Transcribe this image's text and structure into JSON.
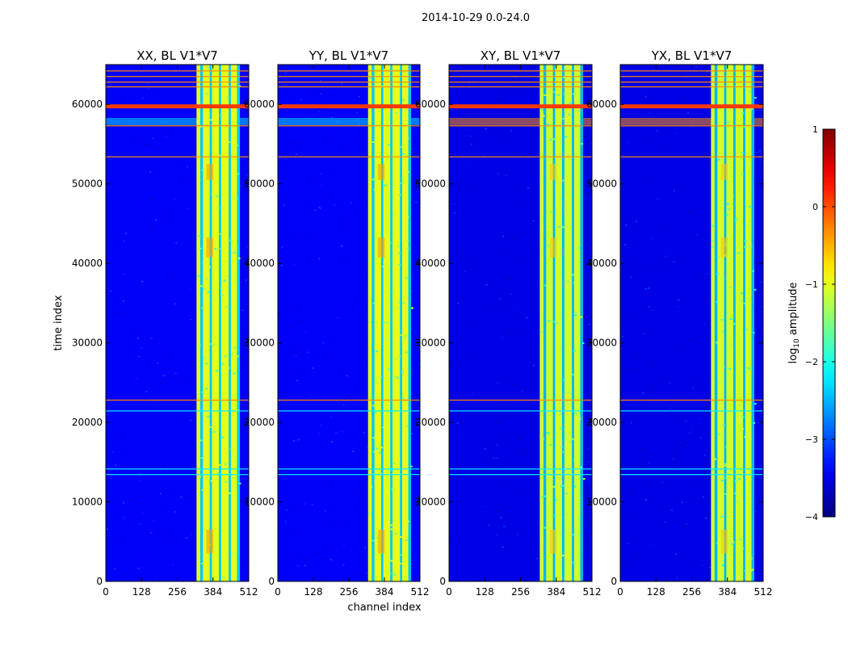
{
  "suptitle": "2014-10-29 0.0-24.0",
  "chart_data": {
    "type": "heatmap",
    "shared_xlabel": "channel index",
    "shared_ylabel": "time index",
    "xlim": [
      0,
      512
    ],
    "ylim": [
      0,
      65000
    ],
    "x_ticks": [
      0,
      128,
      256,
      384,
      512
    ],
    "y_ticks": [
      0,
      10000,
      20000,
      30000,
      40000,
      50000,
      60000
    ],
    "colorbar": {
      "label_prefix": "log",
      "label_sub": "10",
      "label_suffix": " amplitude",
      "range": [
        -4,
        1
      ],
      "ticks": [
        -4,
        -3,
        -2,
        -1,
        0,
        1
      ],
      "tick_labels": [
        "−4",
        "−3",
        "−2",
        "−1",
        "0",
        "1"
      ],
      "colormap": "jet"
    },
    "panels": [
      {
        "title": "XX, BL V1*V7",
        "background_level": -3.4,
        "band_level": -1.0,
        "band_channels": [
          325,
          480
        ],
        "strong_rfi_time": [
          59500,
          60000
        ],
        "strong_rfi_level": 0.1,
        "hot_spot_level": -0.4,
        "time_band": [
          57400,
          58300
        ],
        "time_band_level": -2.3,
        "line_times": [
          22800,
          53400,
          57300,
          62200,
          62800,
          63500,
          64200
        ],
        "line_level": -0.3
      },
      {
        "title": "YY, BL V1*V7",
        "background_level": -3.4,
        "band_level": -1.0,
        "band_channels": [
          325,
          480
        ],
        "strong_rfi_time": [
          59500,
          60000
        ],
        "strong_rfi_level": 0.1,
        "hot_spot_level": -0.4,
        "time_band": [
          57400,
          58300
        ],
        "time_band_level": -2.3,
        "line_times": [
          22800,
          53400,
          57300,
          62200,
          62800,
          63500,
          64200
        ],
        "line_level": -0.3
      },
      {
        "title": "XY, BL V1*V7",
        "background_level": -3.5,
        "band_level": -1.1,
        "band_channels": [
          325,
          480
        ],
        "strong_rfi_time": [
          59500,
          60000
        ],
        "strong_rfi_level": 0.1,
        "hot_spot_level": -0.6,
        "time_band": [
          57400,
          58300
        ],
        "time_band_level": -0.3,
        "line_times": [
          22800,
          53400,
          57300,
          62200,
          62800,
          63500,
          64200
        ],
        "line_level": -0.3
      },
      {
        "title": "YX, BL V1*V7",
        "background_level": -3.5,
        "band_level": -1.1,
        "band_channels": [
          325,
          480
        ],
        "strong_rfi_time": [
          59500,
          60000
        ],
        "strong_rfi_level": 0.1,
        "hot_spot_level": -0.6,
        "time_band": [
          57400,
          58300
        ],
        "time_band_level": -0.3,
        "line_times": [
          22800,
          53400,
          57300,
          62200,
          62800,
          63500,
          64200
        ],
        "line_level": -0.3
      }
    ]
  }
}
